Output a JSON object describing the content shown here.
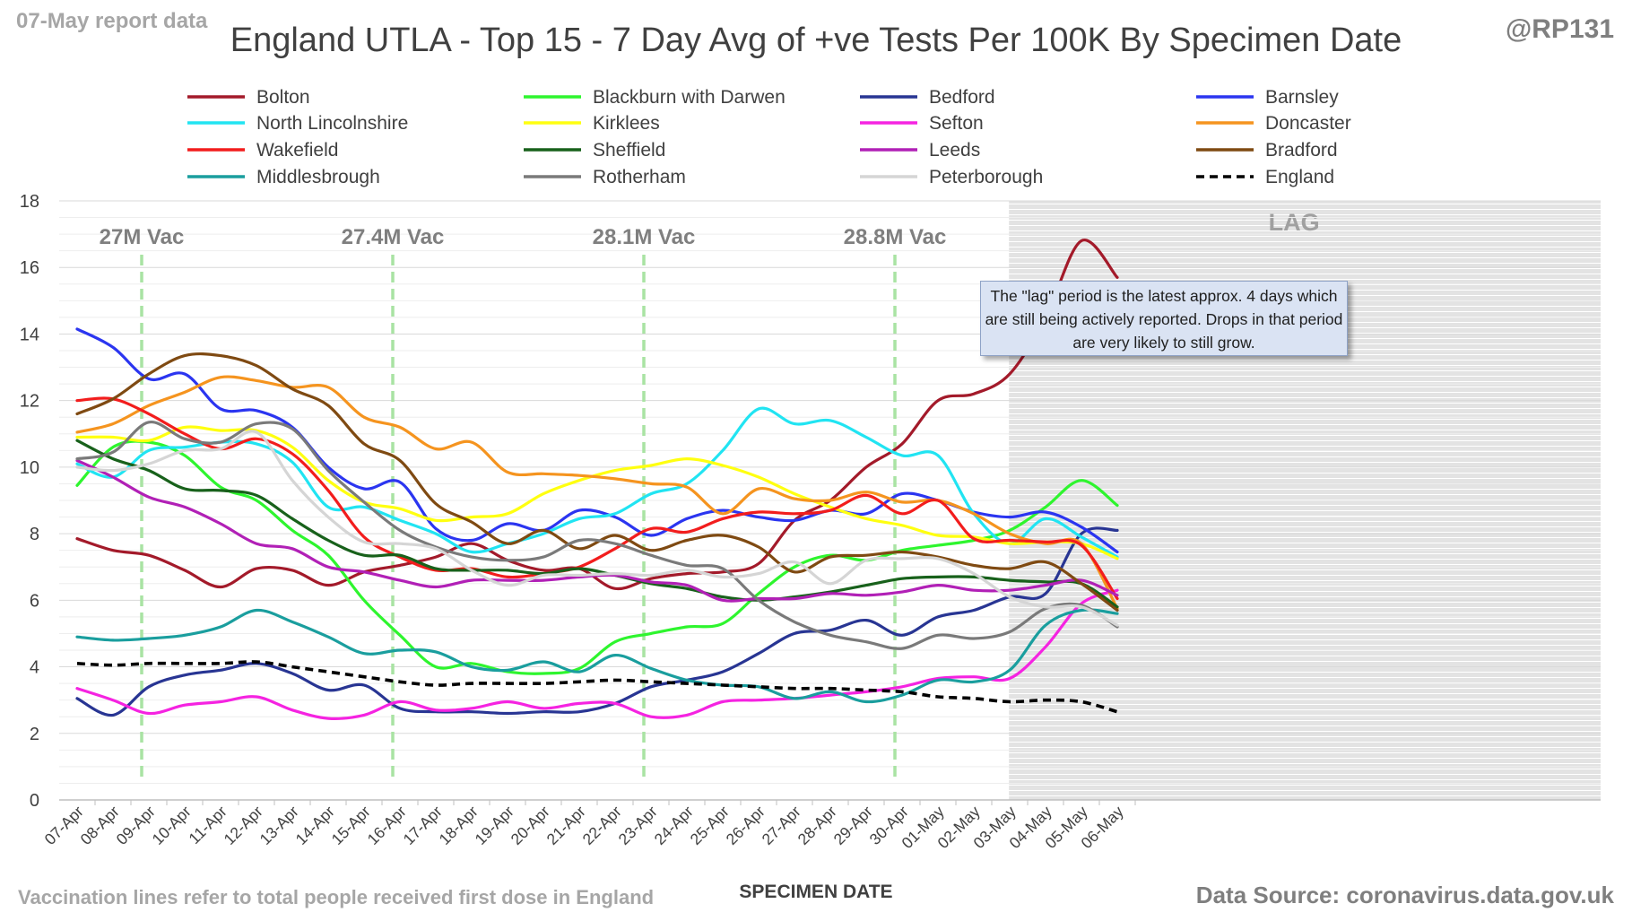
{
  "header": {
    "report_date": "07-May report data",
    "title": "England UTLA - Top 15 - 7 Day Avg of +ve Tests Per 100K By Specimen Date",
    "handle": "@RP131"
  },
  "footer": {
    "vaccination_note": "Vaccination lines refer to total people received first dose in England",
    "source": "Data Source: coronavirus.data.gov.uk"
  },
  "lag_note": "The \"lag\" period is the latest approx. 4 days which are still being actively reported.  Drops in that period are very likely to still grow.",
  "chart_data": {
    "type": "line",
    "title": "England UTLA - Top 15 - 7 Day Avg of +ve Tests Per 100K By Specimen Date",
    "xlabel": "SPECIMEN DATE",
    "ylabel": "",
    "ylim": [
      0,
      18
    ],
    "yticks": [
      0,
      2,
      4,
      6,
      8,
      10,
      12,
      14,
      16,
      18
    ],
    "grid": "horizontal",
    "legend_position": "top",
    "categories": [
      "07-Apr",
      "08-Apr",
      "09-Apr",
      "10-Apr",
      "11-Apr",
      "12-Apr",
      "13-Apr",
      "14-Apr",
      "15-Apr",
      "16-Apr",
      "17-Apr",
      "18-Apr",
      "19-Apr",
      "20-Apr",
      "21-Apr",
      "22-Apr",
      "23-Apr",
      "24-Apr",
      "25-Apr",
      "26-Apr",
      "27-Apr",
      "28-Apr",
      "29-Apr",
      "30-Apr",
      "01-May",
      "02-May",
      "03-May",
      "04-May",
      "05-May",
      "06-May"
    ],
    "lag": {
      "label": "LAG",
      "from": "03-May",
      "to": "06-May"
    },
    "vaccination_lines": [
      {
        "label": "27M Vac",
        "position": "09-Apr"
      },
      {
        "label": "27.4M Vac",
        "position": "16-Apr"
      },
      {
        "label": "28.1M Vac",
        "position": "23-Apr"
      },
      {
        "label": "28.8M Vac",
        "position": "30-Apr"
      }
    ],
    "series": [
      {
        "name": "Bolton",
        "color": "#a31a2a",
        "dashed": false,
        "values": [
          7.85,
          7.5,
          7.35,
          6.9,
          6.4,
          6.95,
          6.9,
          6.45,
          6.85,
          7.05,
          7.3,
          7.7,
          7.2,
          6.9,
          6.95,
          6.35,
          6.65,
          6.8,
          6.85,
          7.1,
          8.4,
          9.0,
          10.0,
          10.7,
          12.0,
          12.2,
          12.8,
          14.5,
          16.8,
          15.7
        ]
      },
      {
        "name": "Blackburn with Darwen",
        "color": "#2ef52e",
        "dashed": false,
        "values": [
          9.45,
          10.6,
          10.75,
          10.35,
          9.4,
          9.0,
          8.1,
          7.35,
          6.0,
          4.95,
          4.0,
          4.1,
          3.85,
          3.8,
          3.95,
          4.75,
          5.0,
          5.2,
          5.3,
          6.2,
          7.0,
          7.35,
          7.2,
          7.5,
          7.65,
          7.8,
          8.1,
          8.8,
          9.6,
          8.85
        ]
      },
      {
        "name": "Bedford",
        "color": "#283593",
        "dashed": false,
        "values": [
          3.05,
          2.55,
          3.4,
          3.75,
          3.9,
          4.1,
          3.8,
          3.3,
          3.45,
          2.75,
          2.65,
          2.65,
          2.6,
          2.65,
          2.65,
          2.9,
          3.4,
          3.6,
          3.85,
          4.4,
          5.0,
          5.1,
          5.4,
          4.95,
          5.5,
          5.7,
          6.1,
          6.2,
          8.0,
          8.1
        ]
      },
      {
        "name": "Barnsley",
        "color": "#2b35f0",
        "dashed": false,
        "values": [
          14.15,
          13.6,
          12.65,
          12.8,
          11.75,
          11.7,
          11.2,
          10.0,
          9.35,
          9.55,
          8.15,
          7.8,
          8.3,
          8.1,
          8.7,
          8.5,
          7.95,
          8.45,
          8.7,
          8.5,
          8.4,
          8.7,
          8.6,
          9.2,
          9.0,
          8.65,
          8.5,
          8.65,
          8.2,
          7.45
        ]
      },
      {
        "name": "North Lincolnshire",
        "color": "#21e4f2",
        "dashed": false,
        "values": [
          10.1,
          9.7,
          10.5,
          10.6,
          10.75,
          10.7,
          10.15,
          8.8,
          8.8,
          8.4,
          8.0,
          7.45,
          7.7,
          8.0,
          8.45,
          8.6,
          9.2,
          9.5,
          10.5,
          11.75,
          11.3,
          11.4,
          10.9,
          10.35,
          10.35,
          8.6,
          7.7,
          8.45,
          7.9,
          7.3
        ]
      },
      {
        "name": "Kirklees",
        "color": "#ffff10",
        "dashed": false,
        "values": [
          10.9,
          10.9,
          10.8,
          11.2,
          11.1,
          11.1,
          10.6,
          9.6,
          8.95,
          8.75,
          8.4,
          8.5,
          8.6,
          9.2,
          9.6,
          9.9,
          10.05,
          10.25,
          10.05,
          9.7,
          9.2,
          8.8,
          8.45,
          8.25,
          7.95,
          7.9,
          7.7,
          7.75,
          7.7,
          7.25
        ]
      },
      {
        "name": "Sefton",
        "color": "#f523e1",
        "dashed": false,
        "values": [
          3.35,
          3.0,
          2.6,
          2.85,
          2.95,
          3.1,
          2.7,
          2.45,
          2.55,
          2.95,
          2.7,
          2.75,
          2.95,
          2.75,
          2.9,
          2.9,
          2.5,
          2.55,
          2.95,
          3.0,
          3.05,
          3.15,
          3.25,
          3.4,
          3.65,
          3.7,
          3.65,
          4.6,
          5.9,
          6.3
        ]
      },
      {
        "name": "Doncaster",
        "color": "#f5941f",
        "dashed": false,
        "values": [
          11.05,
          11.3,
          11.85,
          12.25,
          12.7,
          12.6,
          12.4,
          12.4,
          11.5,
          11.2,
          10.55,
          10.75,
          9.85,
          9.8,
          9.75,
          9.65,
          9.5,
          9.4,
          8.6,
          9.35,
          9.05,
          9.0,
          9.25,
          8.95,
          9.0,
          8.6,
          8.0,
          7.7,
          7.7,
          5.75
        ]
      },
      {
        "name": "Wakefield",
        "color": "#f21d1d",
        "dashed": false,
        "values": [
          12.0,
          12.05,
          11.6,
          11.0,
          10.55,
          10.85,
          10.4,
          9.3,
          7.9,
          7.3,
          6.9,
          6.95,
          6.7,
          6.8,
          7.0,
          7.55,
          8.15,
          8.05,
          8.45,
          8.65,
          8.6,
          8.7,
          9.15,
          8.6,
          9.0,
          7.85,
          7.8,
          7.75,
          7.65,
          6.05
        ]
      },
      {
        "name": "Sheffield",
        "color": "#18611b",
        "dashed": false,
        "values": [
          10.8,
          10.25,
          9.9,
          9.35,
          9.3,
          9.15,
          8.45,
          7.8,
          7.35,
          7.35,
          6.95,
          6.9,
          6.9,
          6.8,
          6.95,
          6.75,
          6.5,
          6.35,
          6.1,
          6.0,
          6.1,
          6.25,
          6.45,
          6.65,
          6.7,
          6.7,
          6.6,
          6.55,
          6.5,
          5.8
        ]
      },
      {
        "name": "Leeds",
        "color": "#b120b6",
        "dashed": false,
        "values": [
          10.2,
          9.7,
          9.1,
          8.8,
          8.3,
          7.7,
          7.55,
          7.0,
          6.85,
          6.6,
          6.4,
          6.6,
          6.6,
          6.6,
          6.7,
          6.75,
          6.55,
          6.45,
          6.0,
          6.05,
          6.05,
          6.2,
          6.15,
          6.25,
          6.45,
          6.3,
          6.3,
          6.45,
          6.6,
          6.15
        ]
      },
      {
        "name": "Bradford",
        "color": "#7f4a12",
        "dashed": false,
        "values": [
          11.6,
          12.05,
          12.8,
          13.35,
          13.35,
          13.05,
          12.35,
          11.85,
          10.7,
          10.2,
          8.9,
          8.35,
          7.7,
          8.1,
          7.55,
          7.95,
          7.5,
          7.8,
          7.95,
          7.6,
          6.85,
          7.3,
          7.35,
          7.45,
          7.3,
          7.05,
          6.95,
          7.15,
          6.5,
          5.7
        ]
      },
      {
        "name": "Middlesbrough",
        "color": "#1a9e9e",
        "dashed": false,
        "values": [
          4.9,
          4.8,
          4.85,
          4.95,
          5.2,
          5.7,
          5.35,
          4.9,
          4.4,
          4.5,
          4.45,
          4.0,
          3.9,
          4.15,
          3.85,
          4.35,
          3.95,
          3.6,
          3.45,
          3.4,
          3.05,
          3.25,
          2.95,
          3.15,
          3.6,
          3.55,
          3.9,
          5.25,
          5.7,
          5.6
        ]
      },
      {
        "name": "Rotherham",
        "color": "#7a7a7a",
        "dashed": false,
        "values": [
          10.25,
          10.45,
          11.35,
          10.85,
          10.75,
          11.3,
          11.15,
          9.9,
          8.95,
          8.1,
          7.6,
          7.3,
          7.2,
          7.3,
          7.8,
          7.7,
          7.35,
          7.05,
          6.95,
          6.0,
          5.35,
          4.95,
          4.75,
          4.55,
          4.95,
          4.85,
          5.05,
          5.75,
          5.85,
          5.2
        ]
      },
      {
        "name": "Peterborough",
        "color": "#d5d5d5",
        "dashed": false,
        "values": [
          10.0,
          9.9,
          10.1,
          10.5,
          10.55,
          11.05,
          9.6,
          8.5,
          7.75,
          7.7,
          7.55,
          6.9,
          6.45,
          6.75,
          6.75,
          6.8,
          6.75,
          6.9,
          6.7,
          6.8,
          7.15,
          6.5,
          7.2,
          7.25,
          7.25,
          6.8,
          6.1,
          5.8,
          5.8,
          5.25
        ]
      },
      {
        "name": "England",
        "color": "#000000",
        "dashed": true,
        "values": [
          4.1,
          4.05,
          4.1,
          4.1,
          4.1,
          4.15,
          4.0,
          3.85,
          3.7,
          3.55,
          3.45,
          3.5,
          3.5,
          3.5,
          3.55,
          3.6,
          3.55,
          3.5,
          3.45,
          3.4,
          3.35,
          3.35,
          3.3,
          3.25,
          3.1,
          3.05,
          2.95,
          3.0,
          2.95,
          2.65
        ]
      }
    ]
  }
}
